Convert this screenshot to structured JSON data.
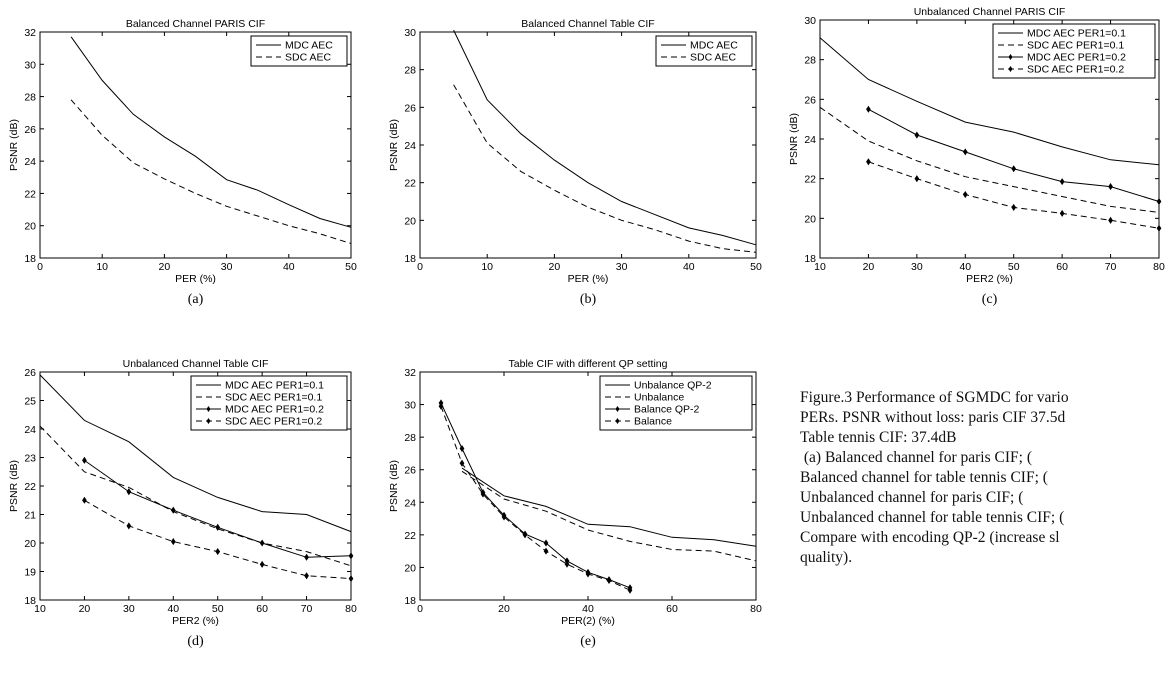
{
  "chart_data": [
    {
      "type": "line",
      "title": "Balanced Channel PARIS CIF",
      "xlabel": "PER (%)",
      "ylabel": "PSNR (dB)",
      "xlim": [
        0,
        50
      ],
      "ylim": [
        18,
        32
      ],
      "xticks": [
        0,
        10,
        20,
        30,
        40,
        50
      ],
      "yticks": [
        18,
        20,
        22,
        24,
        26,
        28,
        30,
        32
      ],
      "legend": "top-right",
      "grid": false,
      "panel_label": "(a)",
      "series": [
        {
          "name": "MDC AEC",
          "style": "solid",
          "marker": "none",
          "x": [
            5,
            10,
            15,
            20,
            25,
            30,
            35,
            40,
            45,
            50
          ],
          "y": [
            31.7,
            29.0,
            26.9,
            25.5,
            24.3,
            22.85,
            22.2,
            21.3,
            20.45,
            19.9
          ]
        },
        {
          "name": "SDC AEC",
          "style": "dashed",
          "marker": "none",
          "x": [
            5,
            10,
            15,
            20,
            25,
            30,
            35,
            40,
            45,
            50
          ],
          "y": [
            27.8,
            25.6,
            23.9,
            22.9,
            22.0,
            21.2,
            20.6,
            20.0,
            19.5,
            18.9
          ]
        }
      ]
    },
    {
      "type": "line",
      "title": "Balanced Channel Table CIF",
      "xlabel": "PER (%)",
      "ylabel": "PSNR (dB)",
      "xlim": [
        0,
        50
      ],
      "ylim": [
        18,
        30
      ],
      "xticks": [
        0,
        10,
        20,
        30,
        40,
        50
      ],
      "yticks": [
        18,
        20,
        22,
        24,
        26,
        28,
        30
      ],
      "legend": "top-right",
      "grid": false,
      "panel_label": "(b)",
      "series": [
        {
          "name": "MDC AEC",
          "style": "solid",
          "marker": "none",
          "x": [
            5,
            10,
            15,
            20,
            25,
            30,
            35,
            40,
            45,
            50
          ],
          "y": [
            30.1,
            26.4,
            24.6,
            23.2,
            22.0,
            21.0,
            20.3,
            19.6,
            19.2,
            18.7
          ]
        },
        {
          "name": "SDC AEC",
          "style": "dashed",
          "marker": "none",
          "x": [
            5,
            10,
            15,
            20,
            25,
            30,
            35,
            40,
            45,
            50
          ],
          "y": [
            27.2,
            24.1,
            22.6,
            21.6,
            20.7,
            20.0,
            19.5,
            18.9,
            18.5,
            18.3
          ]
        }
      ]
    },
    {
      "type": "line",
      "title": "Unbalanced Channel PARIS CIF",
      "xlabel": "PER2 (%)",
      "ylabel": "PSNR (dB)",
      "xlim": [
        10,
        80
      ],
      "ylim": [
        18,
        30
      ],
      "xticks": [
        10,
        20,
        30,
        40,
        50,
        60,
        70,
        80
      ],
      "yticks": [
        18,
        20,
        22,
        24,
        26,
        28,
        30
      ],
      "legend": "top-right",
      "grid": false,
      "panel_label": "(c)",
      "series": [
        {
          "name": "MDC AEC PER1=0.1",
          "style": "solid",
          "marker": "none",
          "x": [
            10,
            20,
            30,
            40,
            50,
            60,
            70,
            80
          ],
          "y": [
            29.1,
            27.0,
            25.9,
            24.85,
            24.35,
            23.6,
            22.95,
            22.7
          ]
        },
        {
          "name": "SDC AEC PER1=0.1",
          "style": "dashed",
          "marker": "none",
          "x": [
            10,
            20,
            30,
            40,
            50,
            60,
            70,
            80
          ],
          "y": [
            25.6,
            23.9,
            22.9,
            22.1,
            21.6,
            21.1,
            20.6,
            20.3
          ]
        },
        {
          "name": "MDC AEC PER1=0.2",
          "style": "solid",
          "marker": "diamond",
          "x": [
            20,
            30,
            40,
            50,
            60,
            70,
            80
          ],
          "y": [
            25.5,
            24.2,
            23.35,
            22.5,
            21.85,
            21.6,
            20.85
          ]
        },
        {
          "name": "SDC AEC PER1=0.2",
          "style": "dashed",
          "marker": "diamond",
          "x": [
            20,
            30,
            40,
            50,
            60,
            70,
            80
          ],
          "y": [
            22.85,
            22.0,
            21.2,
            20.55,
            20.25,
            19.9,
            19.5
          ]
        }
      ]
    },
    {
      "type": "line",
      "title": "Unbalanced Channel Table CIF",
      "xlabel": "PER2 (%)",
      "ylabel": "PSNR (dB)",
      "xlim": [
        10,
        80
      ],
      "ylim": [
        18,
        26
      ],
      "xticks": [
        10,
        20,
        30,
        40,
        50,
        60,
        70,
        80
      ],
      "yticks": [
        18,
        19,
        20,
        21,
        22,
        23,
        24,
        25,
        26
      ],
      "legend": "top-right",
      "grid": false,
      "panel_label": "(d)",
      "series": [
        {
          "name": "MDC AEC PER1=0.1",
          "style": "solid",
          "marker": "none",
          "x": [
            10,
            20,
            30,
            40,
            50,
            60,
            70,
            80
          ],
          "y": [
            25.9,
            24.3,
            23.55,
            22.3,
            21.6,
            21.1,
            21.0,
            20.4
          ]
        },
        {
          "name": "SDC AEC PER1=0.1",
          "style": "dashed",
          "marker": "none",
          "x": [
            10,
            20,
            30,
            40,
            50,
            60,
            70,
            80
          ],
          "y": [
            24.1,
            22.5,
            21.95,
            21.1,
            20.5,
            20.0,
            19.7,
            19.2
          ]
        },
        {
          "name": "MDC AEC PER1=0.2",
          "style": "solid",
          "marker": "diamond",
          "x": [
            20,
            30,
            40,
            50,
            60,
            70,
            80
          ],
          "y": [
            22.9,
            21.8,
            21.15,
            20.55,
            20.0,
            19.5,
            19.55
          ]
        },
        {
          "name": "SDC AEC PER1=0.2",
          "style": "dashed",
          "marker": "diamond",
          "x": [
            20,
            30,
            40,
            50,
            60,
            70,
            80
          ],
          "y": [
            21.5,
            20.6,
            20.05,
            19.7,
            19.25,
            18.85,
            18.75
          ]
        }
      ]
    },
    {
      "type": "line",
      "title": "Table CIF with different QP setting",
      "xlabel": "PER(2) (%)",
      "ylabel": "PSNR (dB)",
      "xlim": [
        0,
        80
      ],
      "ylim": [
        18,
        32
      ],
      "xticks": [
        0,
        20,
        40,
        60,
        80
      ],
      "yticks": [
        18,
        20,
        22,
        24,
        26,
        28,
        30,
        32
      ],
      "legend": "top-right",
      "grid": false,
      "panel_label": "(e)",
      "series": [
        {
          "name": "Unbalance QP-2",
          "style": "solid",
          "marker": "none",
          "x": [
            10,
            20,
            30,
            40,
            50,
            60,
            70,
            80
          ],
          "y": [
            26.1,
            24.4,
            23.75,
            22.65,
            22.5,
            21.85,
            21.7,
            21.3
          ]
        },
        {
          "name": "Unbalance",
          "style": "dashed",
          "marker": "none",
          "x": [
            10,
            20,
            30,
            40,
            50,
            60,
            70,
            80
          ],
          "y": [
            25.9,
            24.2,
            23.45,
            22.3,
            21.6,
            21.1,
            21.0,
            20.4
          ]
        },
        {
          "name": "Balance QP-2",
          "style": "solid",
          "marker": "diamond",
          "x": [
            5,
            10,
            15,
            20,
            25,
            30,
            35,
            40,
            45,
            50
          ],
          "y": [
            30.1,
            27.3,
            24.6,
            23.2,
            22.05,
            21.5,
            20.4,
            19.7,
            19.25,
            18.75
          ]
        },
        {
          "name": "Balance",
          "style": "dashed",
          "marker": "diamond",
          "x": [
            5,
            10,
            15,
            20,
            25,
            30,
            35,
            40,
            45,
            50
          ],
          "y": [
            29.9,
            26.4,
            24.5,
            23.1,
            22.0,
            21.0,
            20.2,
            19.6,
            19.2,
            18.6
          ]
        }
      ]
    }
  ],
  "caption": {
    "lines": [
      "Figure.3 Performance of SGMDC for vario",
      "PERs. PSNR without loss: paris CIF   37.5d",
      "Table tennis CIF: 37.4dB",
      " (a) Balanced channel for paris CIF; (",
      "Balanced channel for table tennis CIF; (",
      "Unbalanced channel for paris CIF; (",
      "Unbalanced channel for table tennis CIF; (",
      "Compare with encoding QP-2 (increase sl",
      "quality)."
    ]
  }
}
